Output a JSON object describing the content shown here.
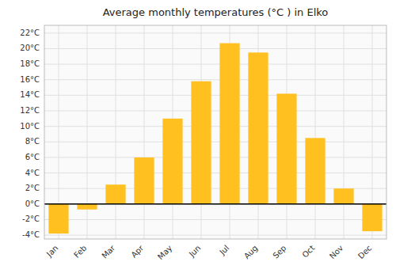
{
  "chart_data": {
    "type": "bar",
    "title": "Average monthly temperatures (°C ) in Elko",
    "categories": [
      "Jan",
      "Feb",
      "Mar",
      "Apr",
      "May",
      "Jun",
      "Jul",
      "Aug",
      "Sep",
      "Oct",
      "Nov",
      "Dec"
    ],
    "values": [
      -3.8,
      -0.7,
      2.5,
      6.0,
      11.0,
      15.8,
      20.7,
      19.5,
      14.2,
      8.5,
      2.0,
      -3.5
    ],
    "color": "#FFC020",
    "ylim": [
      -4.5,
      23
    ],
    "yticks": [
      {
        "value": -4,
        "label": "-4°C"
      },
      {
        "value": -2,
        "label": "-2°C"
      },
      {
        "value": 0,
        "label": "0°C"
      },
      {
        "value": 2,
        "label": "2°C"
      },
      {
        "value": 4,
        "label": "4°C"
      },
      {
        "value": 6,
        "label": "6°C"
      },
      {
        "value": 8,
        "label": "8°C"
      },
      {
        "value": 10,
        "label": "10°C"
      },
      {
        "value": 12,
        "label": "12°C"
      },
      {
        "value": 14,
        "label": "14°C"
      },
      {
        "value": 16,
        "label": "16°C"
      },
      {
        "value": 18,
        "label": "18°C"
      },
      {
        "value": 20,
        "label": "20°C"
      },
      {
        "value": 22,
        "label": "22°C"
      }
    ],
    "grid": true
  }
}
